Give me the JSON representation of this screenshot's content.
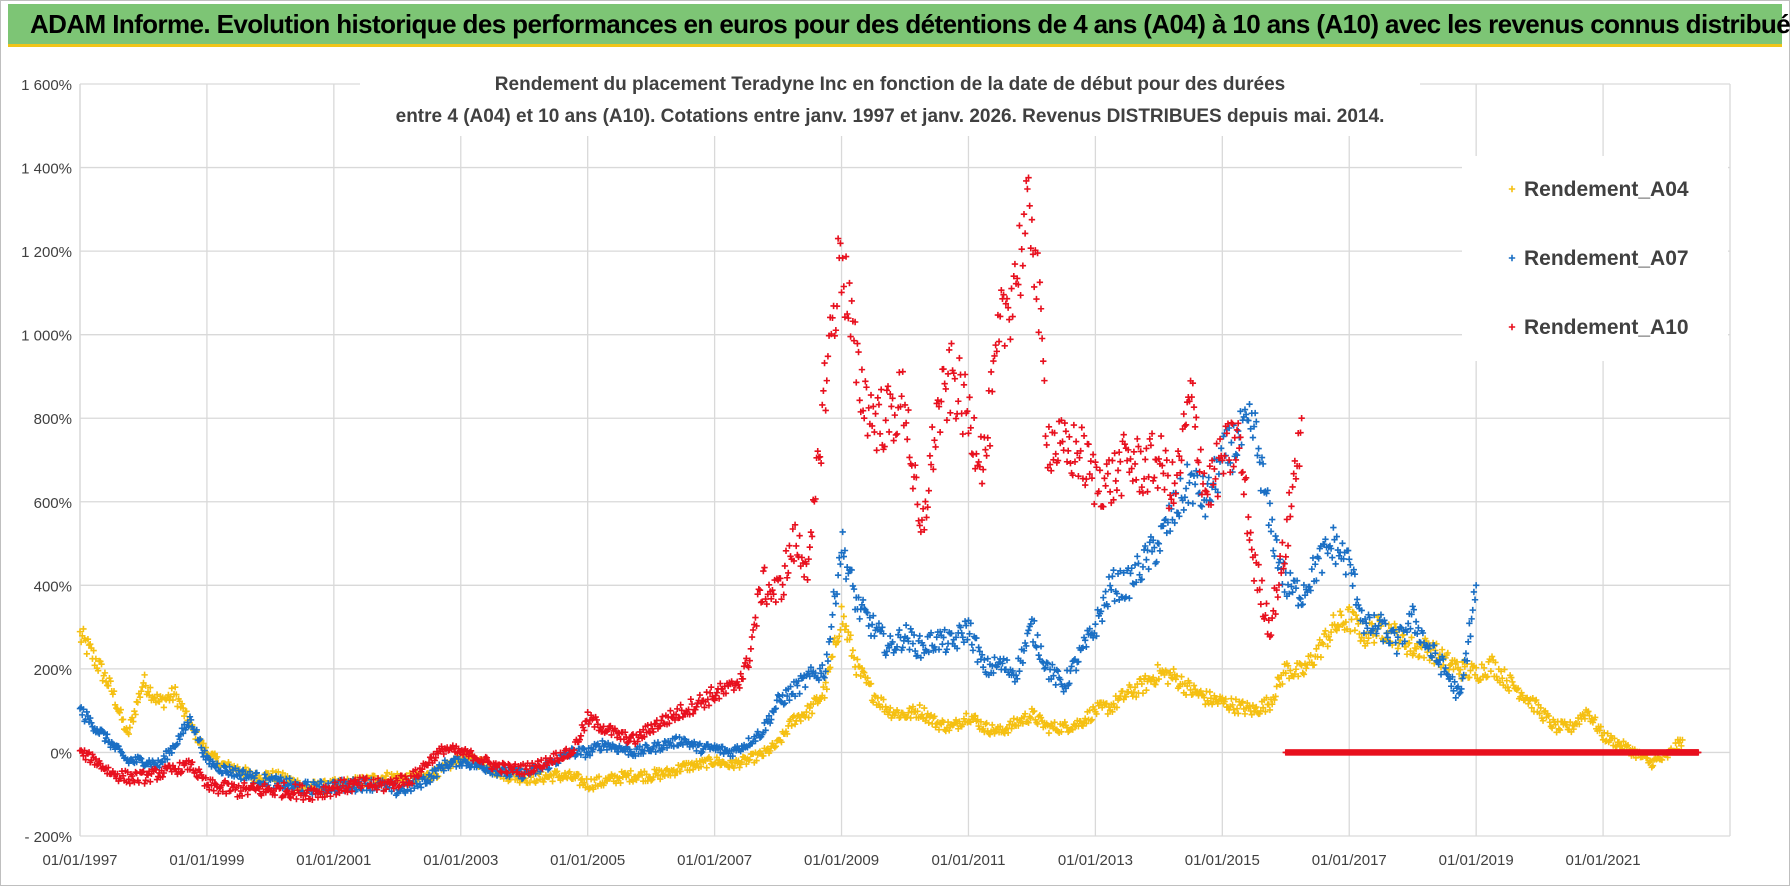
{
  "header": {
    "title": "ADAM Informe. Evolution historique des performances en euros pour des détentions de 4 ans (A04) à 10 ans (A10) avec les revenus connus distribués"
  },
  "chart_data": {
    "type": "scatter",
    "title_line1": "Rendement du placement Teradyne Inc en fonction de la date de début pour des durées",
    "title_line2": "entre 4 (A04) et 10 ans (A10). Cotations entre janv. 1997 et janv. 2026. Revenus DISTRIBUES depuis mai. 2014.",
    "xlabel": "",
    "ylabel": "",
    "xlim": [
      1997.0,
      2023.0
    ],
    "ylim": [
      -200,
      1600
    ],
    "y_ticks": [
      -200,
      0,
      200,
      400,
      600,
      800,
      1000,
      1200,
      1400,
      1600
    ],
    "y_tick_labels": [
      "- 200%",
      "0%",
      "200%",
      "400%",
      "600%",
      "800%",
      "1 000%",
      "1 200%",
      "1 400%",
      "1 600%"
    ],
    "x_ticks": [
      1997,
      1999,
      2001,
      2003,
      2005,
      2007,
      2009,
      2011,
      2013,
      2015,
      2017,
      2019,
      2021
    ],
    "x_tick_labels": [
      "01/01/1997",
      "01/01/1999",
      "01/01/2001",
      "01/01/2003",
      "01/01/2005",
      "01/01/2007",
      "01/01/2009",
      "01/01/2011",
      "01/01/2013",
      "01/01/2015",
      "01/01/2017",
      "01/01/2019",
      "01/01/2021"
    ],
    "grid": true,
    "legend_position": "top-right",
    "series": [
      {
        "name": "Rendement_A04",
        "color": "#f5c012",
        "x": [
          1997.0,
          1997.25,
          1997.5,
          1997.75,
          1998.0,
          1998.25,
          1998.5,
          1998.75,
          1999.0,
          1999.25,
          1999.5,
          1999.75,
          2000.0,
          2000.25,
          2000.5,
          2000.75,
          2001.0,
          2001.25,
          2001.5,
          2001.75,
          2002.0,
          2002.25,
          2002.5,
          2002.75,
          2003.0,
          2003.25,
          2003.5,
          2003.75,
          2004.0,
          2004.25,
          2004.5,
          2004.75,
          2005.0,
          2005.25,
          2005.5,
          2005.75,
          2006.0,
          2006.25,
          2006.5,
          2006.75,
          2007.0,
          2007.25,
          2007.5,
          2007.75,
          2008.0,
          2008.25,
          2008.5,
          2008.75,
          2009.0,
          2009.25,
          2009.5,
          2009.75,
          2010.0,
          2010.25,
          2010.5,
          2010.75,
          2011.0,
          2011.25,
          2011.5,
          2011.75,
          2012.0,
          2012.25,
          2012.5,
          2012.75,
          2013.0,
          2013.25,
          2013.5,
          2013.75,
          2014.0,
          2014.25,
          2014.5,
          2014.75,
          2015.0,
          2015.25,
          2015.5,
          2015.75,
          2016.0,
          2016.25,
          2016.5,
          2016.75,
          2017.0,
          2017.25,
          2017.5,
          2017.75,
          2018.0,
          2018.25,
          2018.5,
          2018.75,
          2019.0,
          2019.25,
          2019.5,
          2019.75,
          2020.0,
          2020.25,
          2020.5,
          2020.75,
          2021.0,
          2021.25,
          2021.5,
          2021.75,
          2022.0,
          2022.25
        ],
        "values": [
          280,
          220,
          150,
          40,
          170,
          120,
          140,
          60,
          0,
          -30,
          -40,
          -60,
          -55,
          -65,
          -80,
          -85,
          -80,
          -75,
          -70,
          -60,
          -60,
          -65,
          -55,
          -40,
          -10,
          -20,
          -40,
          -55,
          -60,
          -60,
          -55,
          -60,
          -75,
          -70,
          -60,
          -55,
          -55,
          -50,
          -35,
          -30,
          -20,
          -30,
          -20,
          -5,
          20,
          80,
          100,
          150,
          330,
          200,
          140,
          100,
          90,
          100,
          70,
          60,
          90,
          60,
          50,
          70,
          90,
          60,
          60,
          70,
          100,
          110,
          140,
          160,
          190,
          180,
          150,
          130,
          120,
          110,
          100,
          120,
          200,
          190,
          240,
          300,
          320,
          280,
          300,
          280,
          250,
          250,
          220,
          200,
          190,
          210,
          170,
          140,
          100,
          60,
          60,
          100,
          40,
          20,
          0,
          -25,
          -10,
          30
        ]
      },
      {
        "name": "Rendement_A07",
        "color": "#1a6fc4",
        "x": [
          1997.0,
          1997.25,
          1997.5,
          1997.75,
          1998.0,
          1998.25,
          1998.5,
          1998.75,
          1999.0,
          1999.25,
          1999.5,
          1999.75,
          2000.0,
          2000.25,
          2000.5,
          2000.75,
          2001.0,
          2001.25,
          2001.5,
          2001.75,
          2002.0,
          2002.25,
          2002.5,
          2002.75,
          2003.0,
          2003.25,
          2003.5,
          2003.75,
          2004.0,
          2004.25,
          2004.5,
          2004.75,
          2005.0,
          2005.25,
          2005.5,
          2005.75,
          2006.0,
          2006.25,
          2006.5,
          2006.75,
          2007.0,
          2007.25,
          2007.5,
          2007.75,
          2008.0,
          2008.25,
          2008.5,
          2008.75,
          2009.0,
          2009.25,
          2009.5,
          2009.75,
          2010.0,
          2010.25,
          2010.5,
          2010.75,
          2011.0,
          2011.25,
          2011.5,
          2011.75,
          2012.0,
          2012.25,
          2012.5,
          2012.75,
          2013.0,
          2013.25,
          2013.5,
          2013.75,
          2014.0,
          2014.25,
          2014.5,
          2014.75,
          2015.0,
          2015.25,
          2015.5,
          2015.75,
          2016.0,
          2016.25,
          2016.5,
          2016.75,
          2017.0,
          2017.25,
          2017.5,
          2017.75,
          2018.0,
          2018.25,
          2018.5,
          2018.75,
          2019.0
        ],
        "values": [
          100,
          60,
          20,
          -20,
          -20,
          -30,
          20,
          80,
          -20,
          -40,
          -50,
          -60,
          -70,
          -75,
          -85,
          -85,
          -80,
          -80,
          -75,
          -80,
          -90,
          -80,
          -60,
          -30,
          -20,
          -30,
          -40,
          -50,
          -50,
          -40,
          -20,
          0,
          0,
          20,
          10,
          0,
          10,
          20,
          30,
          10,
          10,
          0,
          20,
          50,
          120,
          150,
          180,
          200,
          500,
          350,
          300,
          250,
          280,
          250,
          270,
          260,
          300,
          200,
          210,
          190,
          300,
          200,
          160,
          230,
          300,
          400,
          400,
          450,
          500,
          580,
          650,
          600,
          700,
          750,
          780,
          550,
          400,
          380,
          450,
          500,
          450,
          300,
          300,
          260,
          320,
          250,
          200,
          130,
          400
        ]
      },
      {
        "name": "Rendement_A10",
        "color": "#e8101e",
        "x": [
          1997.0,
          1997.25,
          1997.5,
          1997.75,
          1998.0,
          1998.25,
          1998.5,
          1998.75,
          1999.0,
          1999.25,
          1999.5,
          1999.75,
          2000.0,
          2000.25,
          2000.5,
          2000.75,
          2001.0,
          2001.25,
          2001.5,
          2001.75,
          2002.0,
          2002.25,
          2002.5,
          2002.75,
          2003.0,
          2003.25,
          2003.5,
          2003.75,
          2004.0,
          2004.25,
          2004.5,
          2004.75,
          2005.0,
          2005.25,
          2005.5,
          2005.75,
          2006.0,
          2006.25,
          2006.5,
          2006.75,
          2007.0,
          2007.25,
          2007.5,
          2007.75,
          2008.0,
          2008.25,
          2008.5,
          2008.75,
          2009.0,
          2009.25,
          2009.5,
          2009.75,
          2010.0,
          2010.25,
          2010.5,
          2010.75,
          2011.0,
          2011.25,
          2011.5,
          2011.75,
          2012.0,
          2012.25,
          2012.5,
          2012.75,
          2013.0,
          2013.25,
          2013.5,
          2013.75,
          2014.0,
          2014.25,
          2014.5,
          2014.75,
          2015.0,
          2015.25,
          2015.5,
          2015.75,
          2016.0,
          2016.25
        ],
        "values": [
          0,
          -20,
          -50,
          -60,
          -60,
          -50,
          -40,
          -30,
          -80,
          -85,
          -90,
          -90,
          -90,
          -90,
          -95,
          -95,
          -85,
          -80,
          -75,
          -80,
          -70,
          -60,
          -20,
          10,
          0,
          -10,
          -30,
          -40,
          -40,
          -30,
          -10,
          0,
          80,
          60,
          40,
          30,
          60,
          80,
          100,
          120,
          140,
          150,
          200,
          400,
          380,
          500,
          450,
          900,
          1200,
          900,
          800,
          800,
          850,
          500,
          800,
          900,
          800,
          700,
          1000,
          1150,
          1300,
          750,
          720,
          720,
          650,
          650,
          700,
          680,
          700,
          620,
          850,
          620,
          700,
          750,
          450,
          300,
          500,
          800
        ]
      },
      {
        "name": "Rendement_A10",
        "color": "#e8101e",
        "x": [
          2016.0,
          2017.0,
          2018.0,
          2019.0,
          2020.0,
          2021.0,
          2022.0,
          2022.5
        ],
        "values": [
          0,
          0,
          0,
          0,
          0,
          0,
          0,
          0
        ]
      }
    ]
  }
}
